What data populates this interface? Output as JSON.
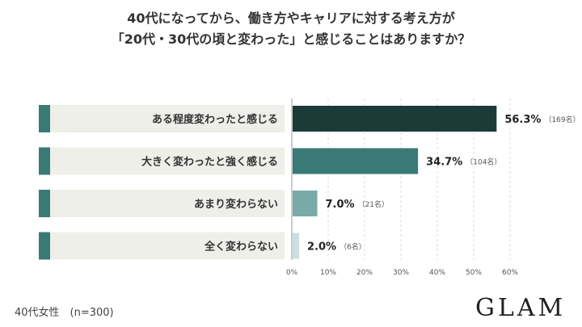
{
  "chart_data": {
    "type": "bar",
    "orientation": "horizontal",
    "title_lines": [
      "40代になってから、働き方やキャリアに対する考え方が",
      "「20代・30代の頃と変わった」と感じることはありますか？"
    ],
    "categories": [
      "ある程度変わったと感じる",
      "大きく変わったと強く感じる",
      "あまり変わらない",
      "全く変わらない"
    ],
    "values": [
      56.3,
      34.7,
      7.0,
      2.0
    ],
    "value_labels": [
      "56.3%",
      "34.7%",
      "7.0%",
      "2.0%"
    ],
    "count_labels": [
      "（169名）",
      "（104名）",
      "（21名）",
      "（6名）"
    ],
    "xlim": [
      0,
      60
    ],
    "xticks": [
      0,
      10,
      20,
      30,
      40,
      50,
      60
    ],
    "xtick_labels": [
      "0%",
      "10%",
      "20%",
      "30%",
      "40%",
      "50%",
      "60%"
    ],
    "grid": true,
    "bar_colors": [
      "#1c3b36",
      "#3a7a76",
      "#7aaaa8",
      "#c8e0e0"
    ]
  },
  "footnote": "40代女性　(n=300)",
  "brand": "GLAM"
}
